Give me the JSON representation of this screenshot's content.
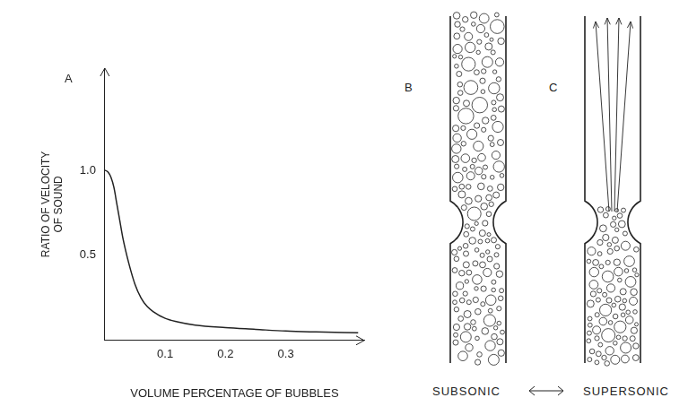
{
  "chart_data": {
    "type": "line",
    "panel_label": "A",
    "x_label": "VOLUME PERCENTAGE OF BUBBLES",
    "y_label": [
      "RATIO OF VELOCITY",
      "OF SOUND"
    ],
    "x": [
      0,
      0.005,
      0.01,
      0.015,
      0.02,
      0.025,
      0.03,
      0.04,
      0.05,
      0.06,
      0.07,
      0.08,
      0.1,
      0.12,
      0.15,
      0.2,
      0.25,
      0.3,
      0.35,
      0.42
    ],
    "values": [
      1.0,
      0.99,
      0.96,
      0.9,
      0.8,
      0.7,
      0.6,
      0.45,
      0.33,
      0.25,
      0.2,
      0.17,
      0.13,
      0.11,
      0.09,
      0.075,
      0.065,
      0.055,
      0.05,
      0.045
    ],
    "color": "#222222",
    "line_style": "solid",
    "marker": "none",
    "xlim": [
      0,
      0.43
    ],
    "ylim": [
      0,
      1.6
    ],
    "xticks": [
      0.1,
      0.2,
      0.3
    ],
    "yticks": [
      0.5,
      {
        "value": 1,
        "label": "1.0"
      }
    ],
    "grid": false
  },
  "diagram": {
    "panels": [
      {
        "label": "B",
        "caption": "SUBSONIC"
      },
      {
        "label": "C",
        "caption": "SUPERSONIC"
      }
    ]
  }
}
